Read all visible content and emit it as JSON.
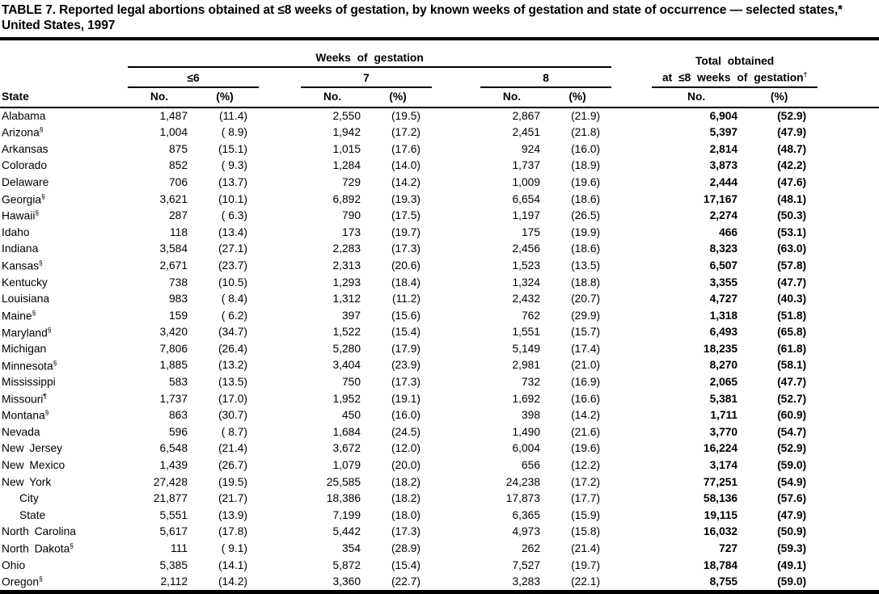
{
  "title": "TABLE 7. Reported legal abortions obtained at ≤8 weeks of gestation, by known weeks of gestation and state of occurrence — selected states,* United States, 1997",
  "table": {
    "header": {
      "state_label": "State",
      "weeks_group": "Weeks of gestation",
      "total_line1": "Total obtained",
      "total_line2": "at ≤8 weeks of gestation",
      "total_sup": "†",
      "gestation_groups": [
        "≤6",
        "7",
        "8"
      ],
      "no_label": "No.",
      "pct_label": "(%)"
    },
    "rows": [
      {
        "state": "Alabama",
        "values": [
          "1,487",
          "(11.4)",
          "2,550",
          "(19.5)",
          "2,867",
          "(21.9)",
          "6,904",
          "(52.9)"
        ]
      },
      {
        "state": "Arizona",
        "sup": "§",
        "values": [
          "1,004",
          "( 8.9)",
          "1,942",
          "(17.2)",
          "2,451",
          "(21.8)",
          "5,397",
          "(47.9)"
        ]
      },
      {
        "state": "Arkansas",
        "values": [
          "875",
          "(15.1)",
          "1,015",
          "(17.6)",
          "924",
          "(16.0)",
          "2,814",
          "(48.7)"
        ]
      },
      {
        "state": "Colorado",
        "values": [
          "852",
          "( 9.3)",
          "1,284",
          "(14.0)",
          "1,737",
          "(18.9)",
          "3,873",
          "(42.2)"
        ]
      },
      {
        "state": "Delaware",
        "values": [
          "706",
          "(13.7)",
          "729",
          "(14.2)",
          "1,009",
          "(19.6)",
          "2,444",
          "(47.6)"
        ]
      },
      {
        "state": "Georgia",
        "sup": "§",
        "values": [
          "3,621",
          "(10.1)",
          "6,892",
          "(19.3)",
          "6,654",
          "(18.6)",
          "17,167",
          "(48.1)"
        ]
      },
      {
        "state": "Hawaii",
        "sup": "§",
        "values": [
          "287",
          "( 6.3)",
          "790",
          "(17.5)",
          "1,197",
          "(26.5)",
          "2,274",
          "(50.3)"
        ]
      },
      {
        "state": "Idaho",
        "values": [
          "118",
          "(13.4)",
          "173",
          "(19.7)",
          "175",
          "(19.9)",
          "466",
          "(53.1)"
        ]
      },
      {
        "state": "Indiana",
        "values": [
          "3,584",
          "(27.1)",
          "2,283",
          "(17.3)",
          "2,456",
          "(18.6)",
          "8,323",
          "(63.0)"
        ]
      },
      {
        "state": "Kansas",
        "sup": "§",
        "values": [
          "2,671",
          "(23.7)",
          "2,313",
          "(20.6)",
          "1,523",
          "(13.5)",
          "6,507",
          "(57.8)"
        ]
      },
      {
        "state": "Kentucky",
        "values": [
          "738",
          "(10.5)",
          "1,293",
          "(18.4)",
          "1,324",
          "(18.8)",
          "3,355",
          "(47.7)"
        ]
      },
      {
        "state": "Louisiana",
        "values": [
          "983",
          "( 8.4)",
          "1,312",
          "(11.2)",
          "2,432",
          "(20.7)",
          "4,727",
          "(40.3)"
        ]
      },
      {
        "state": "Maine",
        "sup": "§",
        "values": [
          "159",
          "( 6.2)",
          "397",
          "(15.6)",
          "762",
          "(29.9)",
          "1,318",
          "(51.8)"
        ]
      },
      {
        "state": "Maryland",
        "sup": "§",
        "values": [
          "3,420",
          "(34.7)",
          "1,522",
          "(15.4)",
          "1,551",
          "(15.7)",
          "6,493",
          "(65.8)"
        ]
      },
      {
        "state": "Michigan",
        "values": [
          "7,806",
          "(26.4)",
          "5,280",
          "(17.9)",
          "5,149",
          "(17.4)",
          "18,235",
          "(61.8)"
        ]
      },
      {
        "state": "Minnesota",
        "sup": "§",
        "values": [
          "1,885",
          "(13.2)",
          "3,404",
          "(23.9)",
          "2,981",
          "(21.0)",
          "8,270",
          "(58.1)"
        ]
      },
      {
        "state": "Mississippi",
        "values": [
          "583",
          "(13.5)",
          "750",
          "(17.3)",
          "732",
          "(16.9)",
          "2,065",
          "(47.7)"
        ]
      },
      {
        "state": "Missouri",
        "sup": "¶",
        "values": [
          "1,737",
          "(17.0)",
          "1,952",
          "(19.1)",
          "1,692",
          "(16.6)",
          "5,381",
          "(52.7)"
        ]
      },
      {
        "state": "Montana",
        "sup": "§",
        "values": [
          "863",
          "(30.7)",
          "450",
          "(16.0)",
          "398",
          "(14.2)",
          "1,711",
          "(60.9)"
        ]
      },
      {
        "state": "Nevada",
        "values": [
          "596",
          "( 8.7)",
          "1,684",
          "(24.5)",
          "1,490",
          "(21.6)",
          "3,770",
          "(54.7)"
        ]
      },
      {
        "state": "New Jersey",
        "values": [
          "6,548",
          "(21.4)",
          "3,672",
          "(12.0)",
          "6,004",
          "(19.6)",
          "16,224",
          "(52.9)"
        ]
      },
      {
        "state": "New Mexico",
        "values": [
          "1,439",
          "(26.7)",
          "1,079",
          "(20.0)",
          "656",
          "(12.2)",
          "3,174",
          "(59.0)"
        ]
      },
      {
        "state": "New York",
        "values": [
          "27,428",
          "(19.5)",
          "25,585",
          "(18.2)",
          "24,238",
          "(17.2)",
          "77,251",
          "(54.9)"
        ]
      },
      {
        "state": "City",
        "indent": true,
        "values": [
          "21,877",
          "(21.7)",
          "18,386",
          "(18.2)",
          "17,873",
          "(17.7)",
          "58,136",
          "(57.6)"
        ]
      },
      {
        "state": "State",
        "indent": true,
        "values": [
          "5,551",
          "(13.9)",
          "7,199",
          "(18.0)",
          "6,365",
          "(15.9)",
          "19,115",
          "(47.9)"
        ]
      },
      {
        "state": "North Carolina",
        "values": [
          "5,617",
          "(17.8)",
          "5,442",
          "(17.3)",
          "4,973",
          "(15.8)",
          "16,032",
          "(50.9)"
        ]
      },
      {
        "state": "North Dakota",
        "sup": "§",
        "values": [
          "111",
          "( 9.1)",
          "354",
          "(28.9)",
          "262",
          "(21.4)",
          "727",
          "(59.3)"
        ]
      },
      {
        "state": "Ohio",
        "values": [
          "5,385",
          "(14.1)",
          "5,872",
          "(15.4)",
          "7,527",
          "(19.7)",
          "18,784",
          "(49.1)"
        ]
      },
      {
        "state": "Oregon",
        "sup": "§",
        "values": [
          "2,112",
          "(14.2)",
          "3,360",
          "(22.7)",
          "3,283",
          "(22.1)",
          "8,755",
          "(59.0)"
        ]
      }
    ]
  }
}
